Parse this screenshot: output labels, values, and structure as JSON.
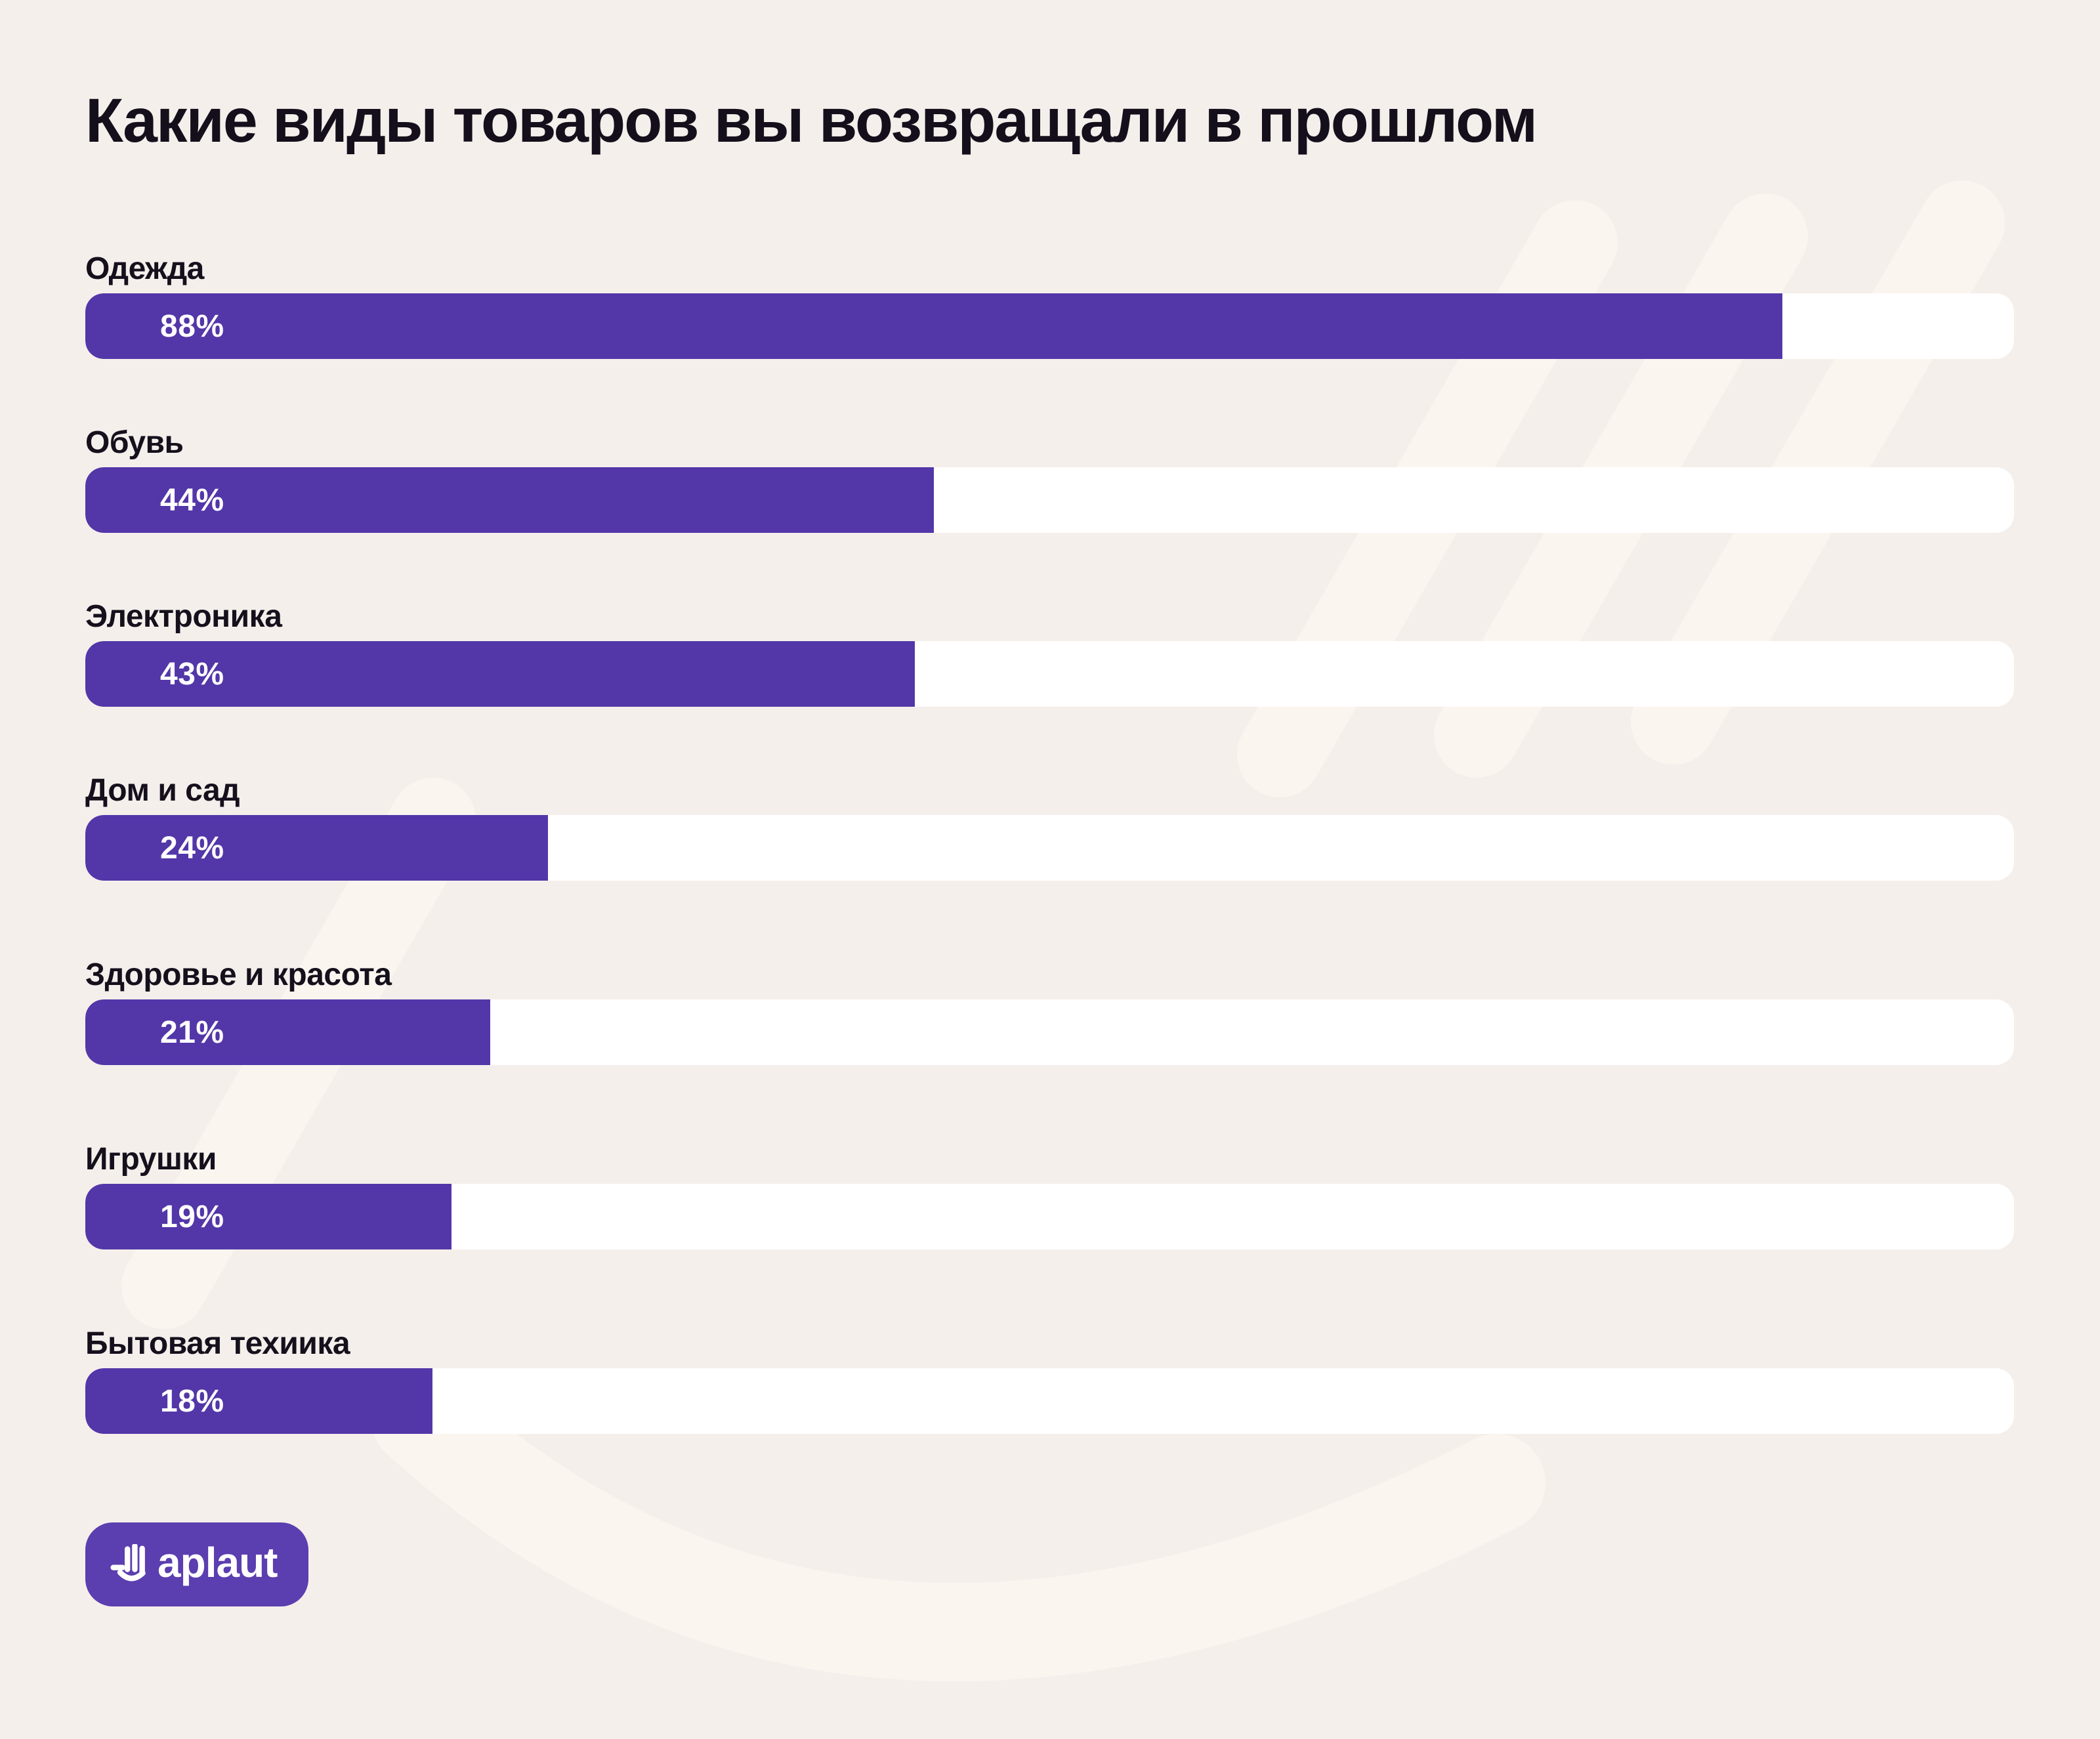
{
  "title": "Какие виды товаров вы возвращали в прошлом",
  "chart_data": {
    "type": "bar",
    "orientation": "horizontal",
    "unit": "%",
    "categories": [
      "Одежда",
      "Обувь",
      "Электроника",
      "Дом и сад",
      "Здоровье и красота",
      "Игрушки",
      "Бытовая техиика"
    ],
    "values": [
      88,
      44,
      43,
      24,
      21,
      19,
      18
    ],
    "value_labels": [
      "88%",
      "44%",
      "43%",
      "24%",
      "21%",
      "19%",
      "18%"
    ],
    "xlim": [
      0,
      100
    ],
    "grid": false,
    "legend": false,
    "bar_color": "#5336A8",
    "track_color": "#FFFFFF"
  },
  "logo": {
    "text": "aplaut",
    "bg_color": "#5B3EAF"
  },
  "colors": {
    "background": "#F4EFEB",
    "title_text": "#140F1B",
    "label_text": "#15101C",
    "value_text": "#FFFFFF",
    "watermark": "#FAF5EF"
  }
}
